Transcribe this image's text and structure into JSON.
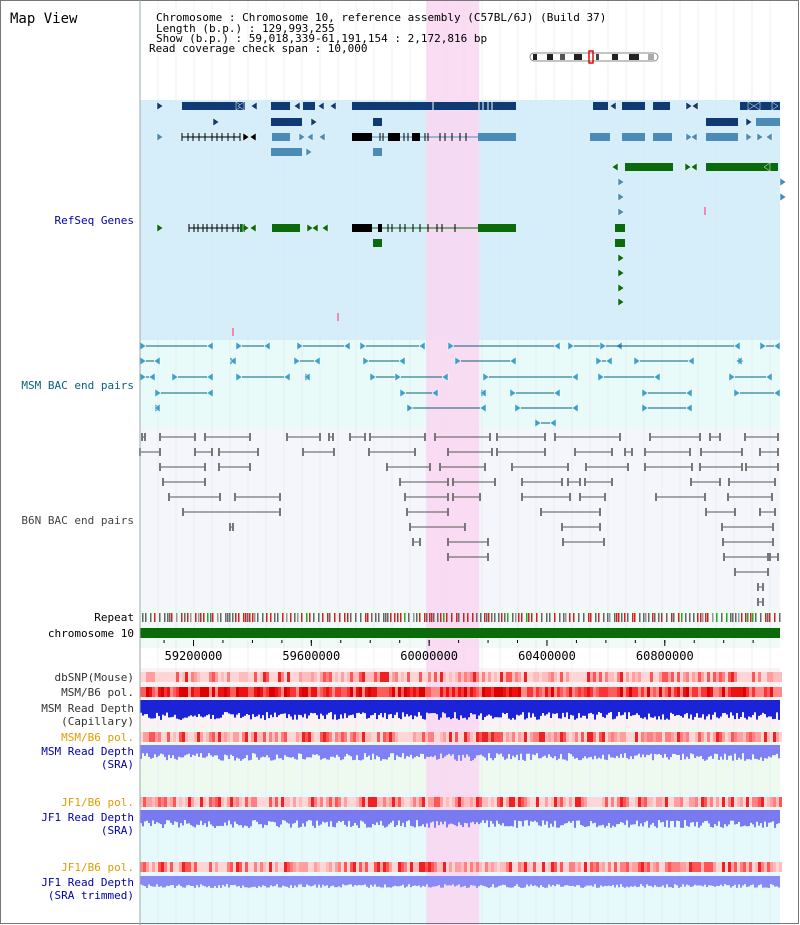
{
  "header": {
    "title": "Map View",
    "info_lines": [
      "Chromosome    : Chromosome 10, reference assembly (C57BL/6J) (Build 37)",
      "Length (b.p.) : 129,993,255",
      "Show (b.p.) : 59,018,339-61,191,154 : 2,172,816 bp",
      "Read coverage check span : 10,000"
    ]
  },
  "region": {
    "start": 59018339,
    "end": 61191154
  },
  "highlight": {
    "start": 59990000,
    "end": 60170000,
    "color": "#f9d6f1"
  },
  "colors": {
    "refseq_bg": "#d6eef9",
    "msm_bac_bg": "#e8fbf9",
    "gene_dark": "#0f3a73",
    "gene_mid": "#4a8cb6",
    "gene_green": "#0b6b0b",
    "black": "#000000",
    "chromosome": "#0b6b0b"
  },
  "tracks": [
    {
      "id": "refseq",
      "label": "RefSeq Genes",
      "color": "#0000aa"
    },
    {
      "id": "msm_bac",
      "label": "MSM BAC end pairs",
      "color": "#0b5f7a"
    },
    {
      "id": "b6n_bac",
      "label": "B6N BAC end pairs",
      "color": "#444444"
    },
    {
      "id": "repeat",
      "label": "Repeat",
      "color": "#000000"
    },
    {
      "id": "chrom",
      "label": "chromosome 10",
      "color": "#000000"
    },
    {
      "id": "dbsnp",
      "label": "dbSNP(Mouse)",
      "color": "#333333"
    },
    {
      "id": "msm_b6_pol",
      "label": "MSM/B6 pol.",
      "color": "#333333"
    },
    {
      "id": "msm_depth_cap",
      "label": "MSM Read Depth",
      "color": "#333333"
    },
    {
      "id": "msm_depth_cap2",
      "label": "(Capillary)",
      "color": "#333333"
    },
    {
      "id": "msm_b6_pol2",
      "label": "MSM/B6 pol.",
      "color": "#e69a00"
    },
    {
      "id": "msm_depth_sra",
      "label": "MSM Read Depth",
      "color": "#0000aa"
    },
    {
      "id": "msm_depth_sra2",
      "label": "(SRA)",
      "color": "#0000aa"
    },
    {
      "id": "jf1_pol",
      "label": "JF1/B6 pol.",
      "color": "#e69a00"
    },
    {
      "id": "jf1_depth",
      "label": "JF1 Read Depth",
      "color": "#0000aa"
    },
    {
      "id": "jf1_depth2",
      "label": "(SRA)",
      "color": "#0000aa"
    },
    {
      "id": "jf1_pol2",
      "label": "JF1/B6 pol.",
      "color": "#e69a00"
    },
    {
      "id": "jf1_trim",
      "label": "JF1 Read Depth",
      "color": "#0000aa"
    },
    {
      "id": "jf1_trim2",
      "label": "(SRA trimmed)",
      "color": "#0000aa"
    }
  ],
  "axis": {
    "ticks": [
      {
        "label": "59200000",
        "value": 59200000
      },
      {
        "label": "59600000",
        "value": 59600000
      },
      {
        "label": "60000000",
        "value": 60000000
      },
      {
        "label": "60400000",
        "value": 60400000
      },
      {
        "label": "60800000",
        "value": 60800000
      }
    ]
  },
  "ideogram": {
    "icon": "chromosome-ideogram"
  }
}
